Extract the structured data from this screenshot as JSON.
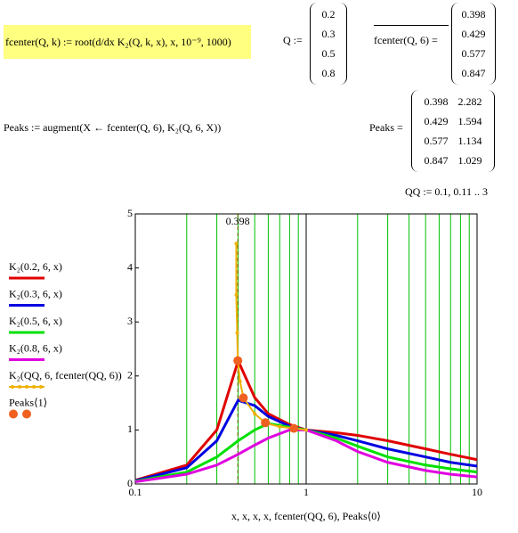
{
  "worksheet": {
    "definition": "fcenter(Q, k) := root(d/dx K₂(Q, k, x), x, 10⁻⁹, 1000)",
    "q_label": "Q :=",
    "q_values": [
      0.2,
      0.3,
      0.5,
      0.8
    ],
    "fcenter_label": "fcenter(Q, 6) =",
    "fcenter_values": [
      0.398,
      0.429,
      0.577,
      0.847
    ],
    "peaks_definition": "Peaks := augment(X ← fcenter(Q, 6), K₂(Q, 6, X))",
    "peaks_label": "Peaks =",
    "peaks_values": [
      [
        0.398,
        2.282
      ],
      [
        0.429,
        1.594
      ],
      [
        0.577,
        1.134
      ],
      [
        0.847,
        1.029
      ]
    ],
    "qq_definition": "QQ := 0.1, 0.11 .. 3"
  },
  "chart_data": {
    "type": "line",
    "xlabel": "x, x, x, x, fcenter(QQ, 6), Peaks⟨0⟩",
    "x": [
      0.1,
      0.2,
      0.3,
      0.4,
      0.5,
      0.6,
      0.8,
      1,
      1.5,
      2,
      3,
      5,
      7,
      10
    ],
    "series": [
      {
        "name": "K₂(0.2, 6, x)",
        "color": "#e00000",
        "values": [
          0.07,
          0.35,
          1.0,
          2.28,
          1.6,
          1.3,
          1.1,
          1.0,
          0.95,
          0.9,
          0.8,
          0.65,
          0.55,
          0.45
        ]
      },
      {
        "name": "K₂(0.3, 6, x)",
        "color": "#0000e0",
        "values": [
          0.06,
          0.3,
          0.8,
          1.55,
          1.45,
          1.25,
          1.07,
          1.0,
          0.9,
          0.8,
          0.65,
          0.5,
          0.4,
          0.33
        ]
      },
      {
        "name": "K₂(0.5, 6, x)",
        "color": "#00e000",
        "values": [
          0.05,
          0.22,
          0.5,
          0.8,
          1.0,
          1.12,
          1.05,
          1.0,
          0.85,
          0.7,
          0.5,
          0.35,
          0.28,
          0.22
        ]
      },
      {
        "name": "K₂(0.8, 6, x)",
        "color": "#e000e0",
        "values": [
          0.04,
          0.18,
          0.35,
          0.55,
          0.72,
          0.85,
          1.0,
          1.0,
          0.8,
          0.6,
          0.4,
          0.25,
          0.18,
          0.13
        ]
      },
      {
        "name": "K₂(QQ, 6, fcenter(QQ, 6))",
        "color": "#f0b000",
        "style": "line-points",
        "x": [
          0.39,
          0.39,
          0.395,
          0.398,
          0.41,
          0.43,
          0.5,
          0.577,
          0.7,
          0.847,
          1.0
        ],
        "values": [
          4.45,
          3.5,
          2.8,
          2.28,
          1.9,
          1.59,
          1.3,
          1.13,
          1.06,
          1.03,
          1.0
        ]
      },
      {
        "name": "Peaks⟨1⟩",
        "color": "#f06020",
        "style": "points",
        "x": [
          0.398,
          0.429,
          0.577,
          0.847
        ],
        "values": [
          2.282,
          1.594,
          1.134,
          1.029
        ]
      }
    ],
    "xlim": [
      0.1,
      10
    ],
    "xticks": [
      0.1,
      1,
      10
    ],
    "log_x": true,
    "ylim": [
      0,
      5
    ],
    "yticks": [
      0,
      1,
      2,
      3,
      4,
      5
    ],
    "grid": true,
    "grid_color": "#00c000",
    "markers": [
      0.398
    ]
  }
}
